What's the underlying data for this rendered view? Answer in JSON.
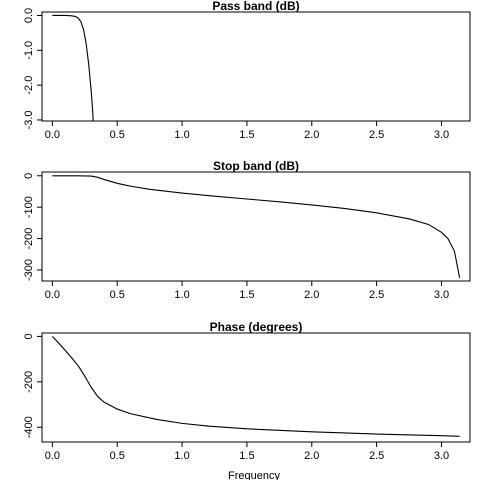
{
  "xlabel": "Frequency",
  "chart_data": [
    {
      "type": "line",
      "title": "Pass band (dB)",
      "xlabel": "",
      "ylabel": "",
      "xlim": [
        -0.08,
        3.22
      ],
      "ylim": [
        -3.03,
        0.1
      ],
      "xticks": [
        0,
        0.5,
        1,
        1.5,
        2,
        2.5,
        3
      ],
      "xtick_labels": [
        "0.0",
        "0.5",
        "1.0",
        "1.5",
        "2.0",
        "2.5",
        "3.0"
      ],
      "yticks": [
        0,
        -1,
        -2,
        -3
      ],
      "ytick_labels": [
        "0.0",
        "-1.0",
        "-2.0",
        "-3.0"
      ],
      "grid": false,
      "series": [
        {
          "x": [
            0,
            0.05,
            0.1,
            0.15,
            0.18,
            0.2,
            0.22,
            0.24,
            0.26,
            0.28,
            0.3,
            0.31,
            0.315
          ],
          "y": [
            0,
            0,
            0,
            -0.01,
            -0.03,
            -0.08,
            -0.18,
            -0.4,
            -0.8,
            -1.4,
            -2.2,
            -2.7,
            -3.05
          ]
        }
      ]
    },
    {
      "type": "line",
      "title": "Stop band (dB)",
      "xlabel": "",
      "ylabel": "",
      "xlim": [
        -0.08,
        3.22
      ],
      "ylim": [
        -335,
        12
      ],
      "xticks": [
        0,
        0.5,
        1,
        1.5,
        2,
        2.5,
        3
      ],
      "xtick_labels": [
        "0.0",
        "0.5",
        "1.0",
        "1.5",
        "2.0",
        "2.5",
        "3.0"
      ],
      "yticks": [
        0,
        -100,
        -200,
        -300
      ],
      "ytick_labels": [
        "0",
        "-100",
        "-200",
        "-300"
      ],
      "grid": false,
      "series": [
        {
          "x": [
            0,
            0.2,
            0.3,
            0.35,
            0.4,
            0.5,
            0.6,
            0.75,
            1,
            1.25,
            1.5,
            1.75,
            2,
            2.25,
            2.5,
            2.75,
            2.9,
            3,
            3.05,
            3.1,
            3.14
          ],
          "y": [
            0,
            0,
            -1,
            -5,
            -12,
            -24,
            -33,
            -43,
            -55,
            -65,
            -74,
            -83,
            -93,
            -104,
            -118,
            -137,
            -155,
            -180,
            -200,
            -240,
            -325
          ]
        }
      ]
    },
    {
      "type": "line",
      "title": "Phase (degrees)",
      "xlabel": "Frequency",
      "ylabel": "",
      "xlim": [
        -0.08,
        3.22
      ],
      "ylim": [
        -465,
        15
      ],
      "xticks": [
        0,
        0.5,
        1,
        1.5,
        2,
        2.5,
        3
      ],
      "xtick_labels": [
        "0.0",
        "0.5",
        "1.0",
        "1.5",
        "2.0",
        "2.5",
        "3.0"
      ],
      "yticks": [
        0,
        -200,
        -400
      ],
      "ytick_labels": [
        "0",
        "-200",
        "-400"
      ],
      "grid": false,
      "series": [
        {
          "x": [
            0,
            0.05,
            0.1,
            0.15,
            0.2,
            0.25,
            0.3,
            0.35,
            0.4,
            0.5,
            0.6,
            0.8,
            1,
            1.2,
            1.5,
            2,
            2.5,
            3,
            3.14
          ],
          "y": [
            0,
            -30,
            -62,
            -95,
            -130,
            -175,
            -225,
            -265,
            -290,
            -320,
            -340,
            -365,
            -383,
            -395,
            -407,
            -420,
            -430,
            -437,
            -440
          ]
        }
      ]
    }
  ]
}
